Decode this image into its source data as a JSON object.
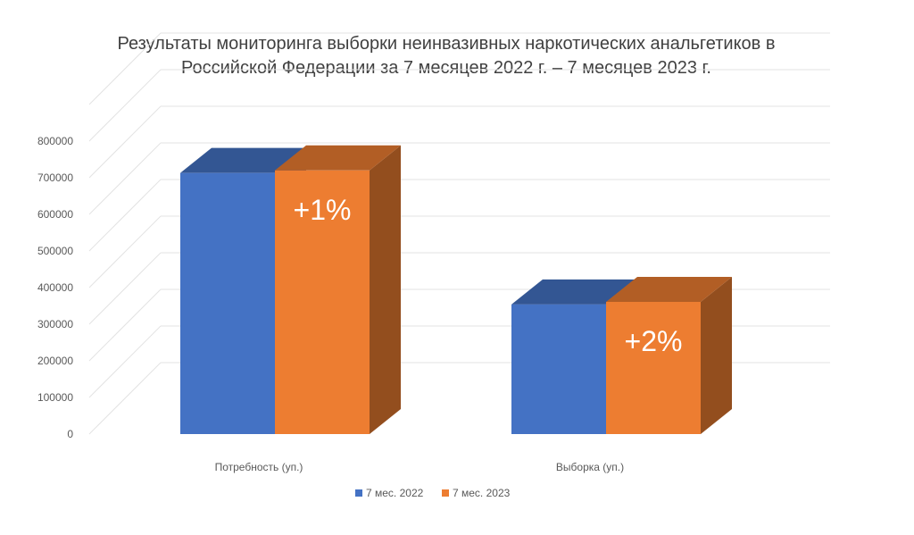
{
  "chart_data": {
    "type": "bar",
    "title_lines": [
      "Результаты мониторинга выборки неинвазивных наркотических анальгетиков  в",
      "Российской Федерации за 7 месяцев 2022 г. – 7 месяцев 2023 г."
    ],
    "categories": [
      "Потребность (уп.)",
      "Выборка (уп.)"
    ],
    "series": [
      {
        "name": "7 мес. 2022",
        "color": "#4472C4",
        "values": [
          713000,
          354000
        ]
      },
      {
        "name": "7 мес. 2023",
        "color": "#ED7D31",
        "values": [
          720000,
          361000
        ]
      }
    ],
    "annotations": [
      "+1%",
      "+2%"
    ],
    "y_ticks": [
      "0",
      "100000",
      "200000",
      "300000",
      "400000",
      "500000",
      "600000",
      "700000",
      "800000"
    ],
    "ylim": [
      0,
      900000
    ],
    "grid": true,
    "legend_position": "bottom",
    "three_d": true
  }
}
